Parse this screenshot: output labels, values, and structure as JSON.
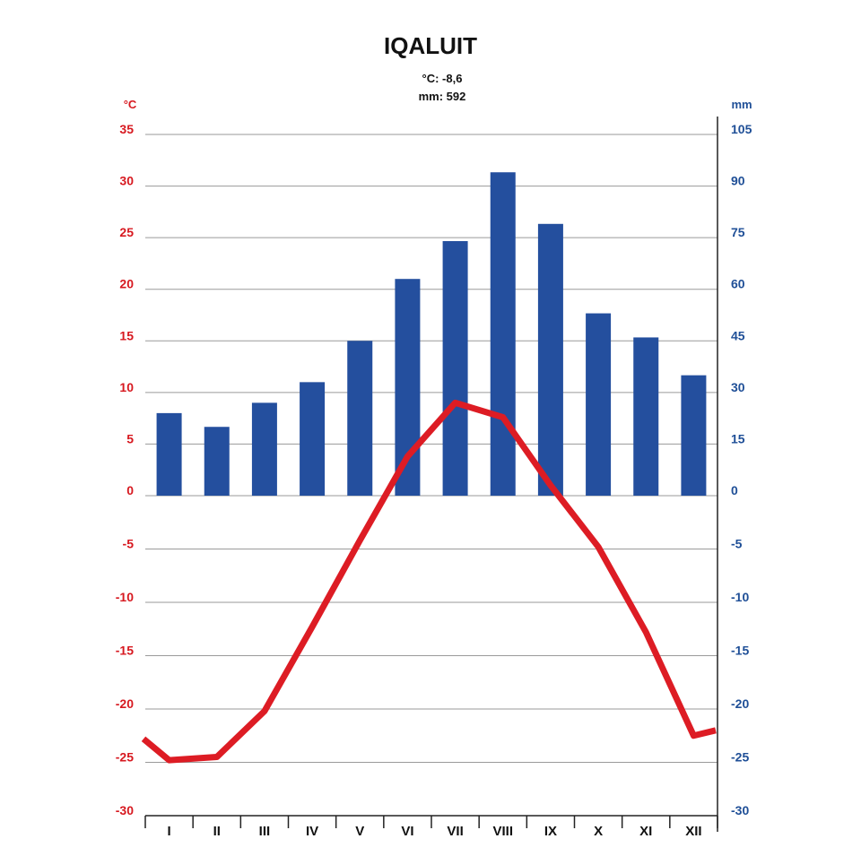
{
  "chart_data": {
    "type": "bar+line",
    "title": "IQALUIT",
    "stats": {
      "temp": "°C: -8,6",
      "precip": "mm: 592"
    },
    "categories": [
      "I",
      "II",
      "III",
      "IV",
      "V",
      "VI",
      "VII",
      "VIII",
      "IX",
      "X",
      "XI",
      "XII"
    ],
    "left_axis": {
      "unit": "°C",
      "min": -30,
      "max": 35,
      "ticks": [
        35,
        30,
        25,
        20,
        15,
        10,
        5,
        0,
        -5,
        -10,
        -15,
        -20,
        -25,
        -30
      ]
    },
    "right_axis": {
      "unit": "mm",
      "min": -30,
      "max": 105,
      "ticks": [
        105,
        90,
        75,
        60,
        45,
        30,
        15,
        0,
        -5,
        -10,
        -15,
        -20,
        -25,
        -30
      ]
    },
    "series": [
      {
        "type": "bar",
        "axis": "right",
        "values": [
          24,
          20,
          27,
          33,
          45,
          63,
          74,
          94,
          79,
          53,
          46,
          35
        ]
      },
      {
        "type": "line",
        "axis": "left",
        "values": [
          -24.8,
          -24.5,
          -20.2,
          -12.3,
          -4.2,
          3.8,
          9.0,
          7.6,
          1.0,
          -4.8,
          -12.8,
          -22.5
        ]
      }
    ],
    "colors": {
      "temperature": "#dd1c24",
      "precipitation": "#244f9e",
      "left_text": "#d71920",
      "right_text": "#1f4f97"
    },
    "grid": true
  }
}
